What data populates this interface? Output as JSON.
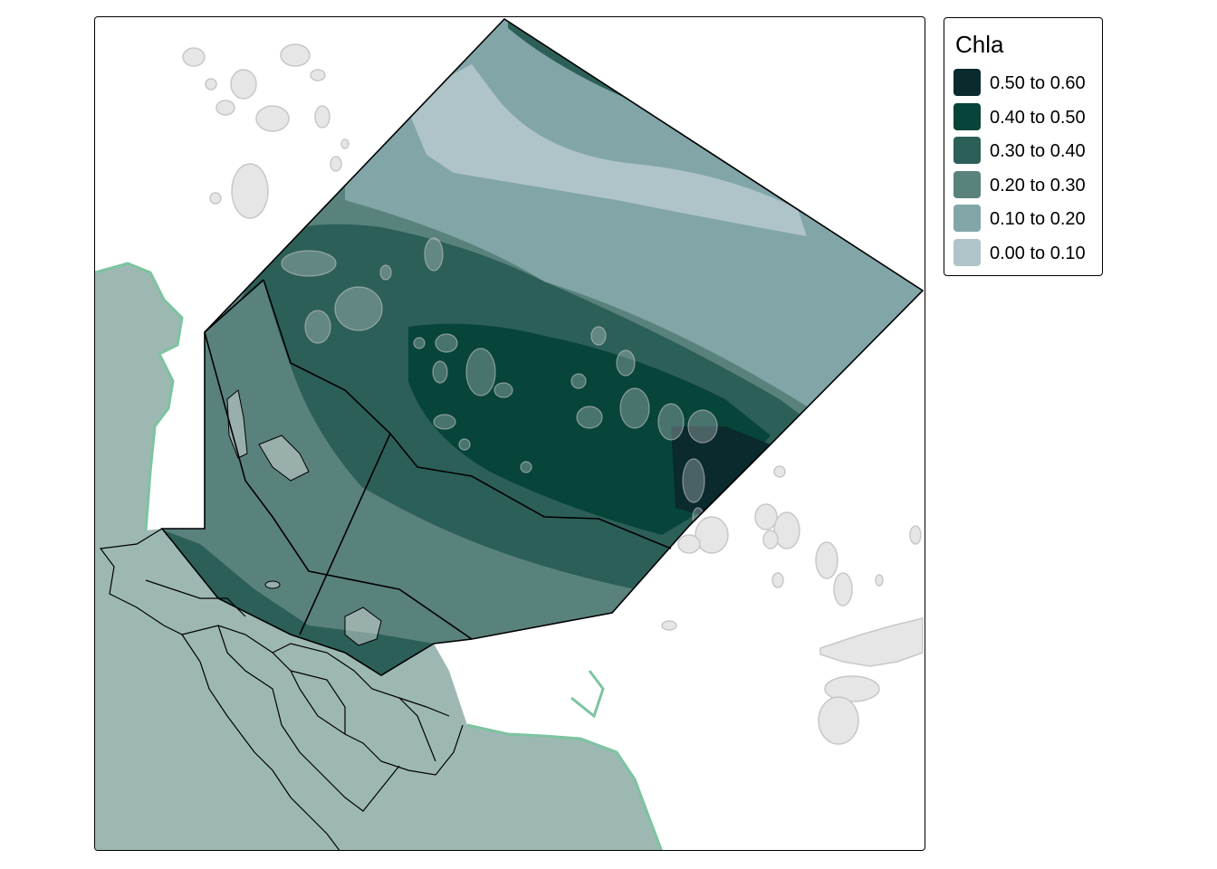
{
  "legend": {
    "title": "Chla",
    "classes": [
      {
        "label": "0.50 to 0.60",
        "color": "#0a2a2e"
      },
      {
        "label": "0.40 to 0.50",
        "color": "#07443a"
      },
      {
        "label": "0.30 to 0.40",
        "color": "#2c5f58"
      },
      {
        "label": "0.20 to 0.30",
        "color": "#5a827d"
      },
      {
        "label": "0.10 to 0.20",
        "color": "#82a5a8"
      },
      {
        "label": "0.00 to 0.10",
        "color": "#aec4c8"
      }
    ]
  },
  "map_colors": {
    "land": "#9db8b2",
    "coast": "#7cc4a0",
    "island_fill": "#e6e6e6",
    "island_stroke": "#c8c8c8",
    "boundary": "#000000",
    "background": "#ffffff"
  }
}
